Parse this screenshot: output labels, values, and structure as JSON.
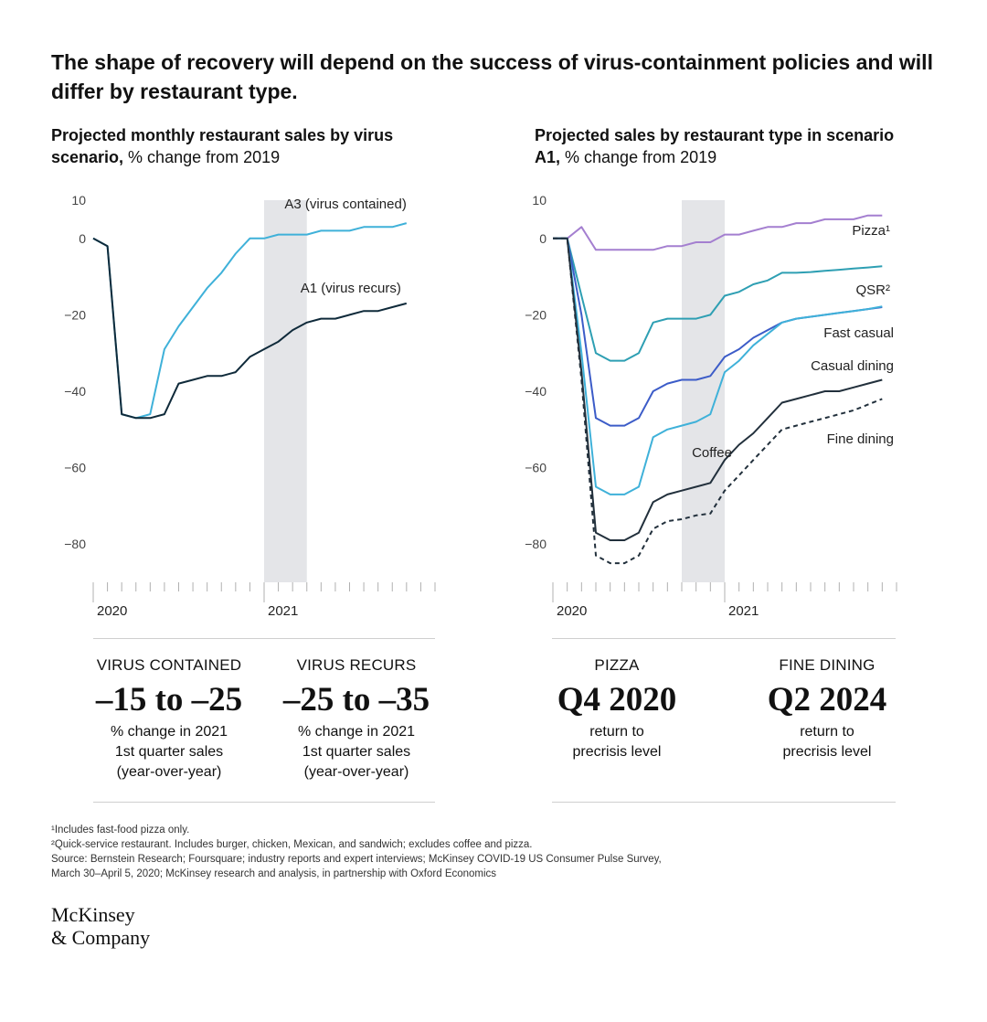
{
  "title": "The shape of recovery will depend on the success of virus-containment policies and will differ by restaurant type.",
  "left": {
    "subtitle_bold": "Projected monthly restaurant sales by virus scenario,",
    "subtitle_rest": " % change from 2019"
  },
  "right": {
    "subtitle_bold": "Projected sales by restaurant type in scenario A1,",
    "subtitle_rest": " % change from 2019"
  },
  "chart_data": [
    {
      "type": "line",
      "title": "Projected monthly restaurant sales by virus scenario, % change from 2019",
      "x_labels": [
        "2020",
        "2021"
      ],
      "months_2020": 12,
      "months_2021": 12,
      "yticks": [
        10,
        0,
        -20,
        -40,
        -60,
        -80
      ],
      "ylim": [
        -90,
        10
      ],
      "shaded_band": [
        12,
        15
      ],
      "series": [
        {
          "name": "A3 (virus contained)",
          "color": "#3fb1d9",
          "values": [
            0,
            -2,
            -46,
            -47,
            -46,
            -29,
            -23,
            -18,
            -13,
            -9,
            -4,
            0,
            0,
            1,
            1,
            1,
            2,
            2,
            2,
            3,
            3,
            3,
            4
          ]
        },
        {
          "name": "A1 (virus recurs)",
          "color": "#0f2a3a",
          "values": [
            0,
            -2,
            -46,
            -47,
            -47,
            -46,
            -38,
            -37,
            -36,
            -36,
            -35,
            -31,
            -29,
            -27,
            -24,
            -22,
            -21,
            -21,
            -20,
            -19,
            -19,
            -18,
            -17
          ]
        }
      ]
    },
    {
      "type": "line",
      "title": "Projected sales by restaurant type in scenario A1, % change from 2019",
      "x_labels": [
        "2020",
        "2021"
      ],
      "months_2020": 12,
      "months_2021": 12,
      "yticks": [
        10,
        0,
        -20,
        -40,
        -60,
        -80
      ],
      "ylim": [
        -90,
        10
      ],
      "shaded_band": [
        9,
        12
      ],
      "series": [
        {
          "name": "Pizza¹",
          "color": "#a47fd0",
          "dashed": false,
          "values": [
            0,
            0,
            3,
            -3,
            -3,
            -3,
            -3,
            -3,
            -2,
            -2,
            -1,
            -1,
            1,
            1,
            2,
            3,
            3,
            4,
            4,
            5,
            5,
            5,
            6,
            6
          ]
        },
        {
          "name": "QSR²",
          "color": "#2e9fb3",
          "dashed": false,
          "values": [
            0,
            0,
            -15,
            -30,
            -32,
            -32,
            -30,
            -22,
            -21,
            -21,
            -21,
            -20,
            -15,
            -14,
            -12,
            -11,
            -9,
            -9,
            -8.8,
            -8.5,
            -8.2,
            -7.9,
            -7.6,
            -7.3
          ]
        },
        {
          "name": "Fast casual",
          "color": "#3c5cc8",
          "dashed": false,
          "values": [
            0,
            0,
            -20,
            -47,
            -49,
            -49,
            -47,
            -40,
            -38,
            -37,
            -37,
            -36,
            -31,
            -29,
            -26,
            -24,
            -22,
            -21,
            -20.5,
            -20,
            -19.5,
            -19,
            -18.5,
            -18
          ]
        },
        {
          "name": "Casual dining",
          "color": "#3fb1d9",
          "dashed": false,
          "values": [
            0,
            0,
            -30,
            -65,
            -67,
            -67,
            -65,
            -52,
            -50,
            -49,
            -48,
            -46,
            -35,
            -32,
            -28,
            -25,
            -22,
            -21,
            -20.5,
            -20,
            -19.5,
            -19,
            -18.5,
            -17.8
          ]
        },
        {
          "name": "Coffee",
          "color": "#22303c",
          "dashed": false,
          "values": [
            0,
            0,
            -35,
            -77,
            -79,
            -79,
            -77,
            -69,
            -67,
            -66,
            -65,
            -64,
            -58,
            -54,
            -51,
            -47,
            -43,
            -42,
            -41,
            -40,
            -40,
            -39,
            -38,
            -37
          ]
        },
        {
          "name": "Fine dining",
          "color": "#22303c",
          "dashed": true,
          "values": [
            0,
            0,
            -37,
            -83,
            -85,
            -85,
            -83,
            -76,
            -74,
            -73.5,
            -72.5,
            -72,
            -66,
            -62,
            -58,
            -54,
            -50,
            -49,
            -48,
            -47,
            -46,
            -45,
            -43.5,
            -42
          ]
        }
      ]
    }
  ],
  "stats": [
    {
      "label": "VIRUS CONTAINED",
      "value": "–15 to –25",
      "desc": [
        "% change in 2021",
        "1st quarter sales",
        "(year-over-year)"
      ]
    },
    {
      "label": "VIRUS RECURS",
      "value": "–25 to –35",
      "desc": [
        "% change in 2021",
        "1st quarter sales",
        "(year-over-year)"
      ]
    },
    {
      "label": "PIZZA",
      "value": "Q4 2020",
      "desc": [
        "return to",
        "precrisis level"
      ]
    },
    {
      "label": "FINE DINING",
      "value": "Q2 2024",
      "desc": [
        "return to",
        "precrisis level"
      ]
    }
  ],
  "footnotes": [
    "¹Includes fast-food pizza only.",
    "²Quick-service restaurant. Includes burger, chicken, Mexican, and sandwich; excludes coffee and pizza.",
    "Source: Bernstein Research; Foursquare; industry reports and expert interviews; McKinsey COVID-19 US Consumer Pulse Survey,",
    "March 30–April 5, 2020; McKinsey research and analysis, in partnership with Oxford Economics"
  ],
  "logo": [
    "McKinsey",
    "& Company"
  ]
}
